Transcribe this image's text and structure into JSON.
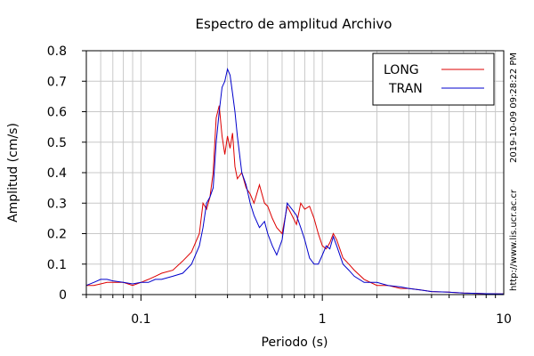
{
  "chart_data": {
    "type": "line",
    "title": "Espectro de amplitud Archivo",
    "xlabel": "Periodo (s)",
    "ylabel": "Amplitud (cm/s)",
    "xscale": "log",
    "xlim": [
      0.05,
      10
    ],
    "ylim": [
      0,
      0.8
    ],
    "x_ticks": [
      0.1,
      1,
      10
    ],
    "x_tick_labels": [
      "0.1",
      "1",
      "10"
    ],
    "y_ticks": [
      0,
      0.1,
      0.2,
      0.3,
      0.4,
      0.5,
      0.6,
      0.7,
      0.8
    ],
    "y_tick_labels": [
      "0",
      "0.1",
      "0.2",
      "0.3",
      "0.4",
      "0.5",
      "0.6",
      "0.7",
      "0.8"
    ],
    "grid": true,
    "legend_position": "top-right",
    "series": [
      {
        "name": "LONG",
        "color": "#dd0000",
        "x": [
          0.05,
          0.055,
          0.06,
          0.065,
          0.07,
          0.08,
          0.09,
          0.1,
          0.11,
          0.12,
          0.13,
          0.15,
          0.17,
          0.19,
          0.21,
          0.22,
          0.23,
          0.24,
          0.25,
          0.26,
          0.27,
          0.28,
          0.29,
          0.3,
          0.31,
          0.32,
          0.33,
          0.34,
          0.36,
          0.38,
          0.4,
          0.42,
          0.45,
          0.48,
          0.5,
          0.53,
          0.56,
          0.6,
          0.64,
          0.68,
          0.72,
          0.76,
          0.8,
          0.85,
          0.9,
          0.95,
          1.0,
          1.05,
          1.1,
          1.15,
          1.2,
          1.3,
          1.4,
          1.5,
          1.7,
          2.0,
          2.3,
          2.7,
          3.0,
          3.5,
          4.0,
          5.0,
          6.0,
          7.0,
          8.0,
          10.0
        ],
        "y": [
          0.03,
          0.03,
          0.035,
          0.04,
          0.04,
          0.04,
          0.03,
          0.04,
          0.05,
          0.06,
          0.07,
          0.08,
          0.11,
          0.14,
          0.2,
          0.3,
          0.28,
          0.32,
          0.4,
          0.58,
          0.62,
          0.52,
          0.46,
          0.52,
          0.48,
          0.53,
          0.42,
          0.38,
          0.4,
          0.35,
          0.33,
          0.3,
          0.36,
          0.3,
          0.29,
          0.25,
          0.22,
          0.2,
          0.29,
          0.26,
          0.23,
          0.3,
          0.28,
          0.29,
          0.25,
          0.2,
          0.16,
          0.15,
          0.17,
          0.2,
          0.18,
          0.12,
          0.1,
          0.08,
          0.05,
          0.03,
          0.03,
          0.02,
          0.02,
          0.015,
          0.01,
          0.008,
          0.005,
          0.004,
          0.003,
          0.002
        ]
      },
      {
        "name": "TRAN",
        "color": "#0000cc",
        "x": [
          0.05,
          0.055,
          0.06,
          0.065,
          0.07,
          0.08,
          0.09,
          0.1,
          0.11,
          0.12,
          0.13,
          0.15,
          0.17,
          0.19,
          0.21,
          0.22,
          0.23,
          0.24,
          0.25,
          0.26,
          0.27,
          0.28,
          0.29,
          0.3,
          0.31,
          0.32,
          0.33,
          0.34,
          0.36,
          0.38,
          0.4,
          0.42,
          0.45,
          0.48,
          0.5,
          0.53,
          0.56,
          0.6,
          0.64,
          0.68,
          0.72,
          0.76,
          0.8,
          0.85,
          0.9,
          0.95,
          1.0,
          1.05,
          1.1,
          1.15,
          1.2,
          1.3,
          1.4,
          1.5,
          1.7,
          2.0,
          2.3,
          2.7,
          3.0,
          3.5,
          4.0,
          5.0,
          6.0,
          7.0,
          8.0,
          10.0
        ],
        "y": [
          0.03,
          0.04,
          0.05,
          0.05,
          0.045,
          0.04,
          0.035,
          0.04,
          0.04,
          0.05,
          0.05,
          0.06,
          0.07,
          0.1,
          0.16,
          0.22,
          0.3,
          0.32,
          0.35,
          0.5,
          0.6,
          0.68,
          0.7,
          0.74,
          0.72,
          0.66,
          0.6,
          0.52,
          0.4,
          0.36,
          0.3,
          0.26,
          0.22,
          0.24,
          0.2,
          0.16,
          0.13,
          0.18,
          0.3,
          0.28,
          0.26,
          0.22,
          0.18,
          0.12,
          0.1,
          0.1,
          0.13,
          0.16,
          0.15,
          0.19,
          0.16,
          0.1,
          0.08,
          0.06,
          0.04,
          0.04,
          0.03,
          0.025,
          0.02,
          0.015,
          0.01,
          0.008,
          0.005,
          0.004,
          0.003,
          0.002
        ]
      }
    ],
    "side_annotations": {
      "timestamp": "2019-10-09 09:28:22 PM",
      "url": "http://www.lis.ucr.ac.cr"
    }
  }
}
